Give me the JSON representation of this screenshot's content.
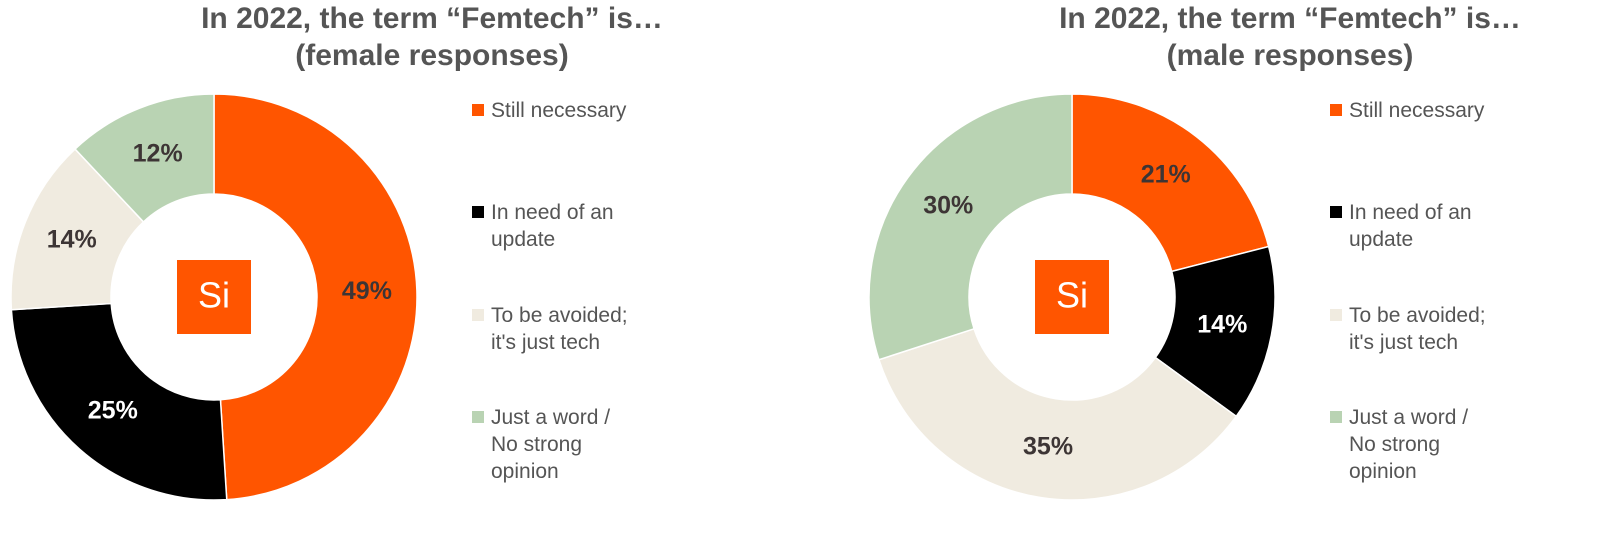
{
  "chart_data": [
    {
      "type": "donut",
      "title": "In 2022, the term “Femtech” is…",
      "subtitle": "(female responses)",
      "center_label": "Si",
      "categories": [
        "Still necessary",
        "In need of an update",
        "To be avoided; it's just tech",
        "Just a word / No strong opinion"
      ],
      "values": [
        49,
        25,
        14,
        12
      ],
      "value_labels": [
        "49%",
        "25%",
        "14%",
        "12%"
      ],
      "colors": [
        "#ff5500",
        "#000000",
        "#f0ebe0",
        "#b9d3b3"
      ]
    },
    {
      "type": "donut",
      "title": "In 2022, the term “Femtech” is…",
      "subtitle": "(male responses)",
      "center_label": "Si",
      "categories": [
        "Still necessary",
        "In need of an update",
        "To be avoided; it's just tech",
        "Just a word / No strong opinion"
      ],
      "values": [
        21,
        14,
        35,
        30
      ],
      "value_labels": [
        "21%",
        "14%",
        "35%",
        "30%"
      ],
      "colors": [
        "#ff5500",
        "#000000",
        "#f0ebe0",
        "#b9d3b3"
      ]
    }
  ]
}
